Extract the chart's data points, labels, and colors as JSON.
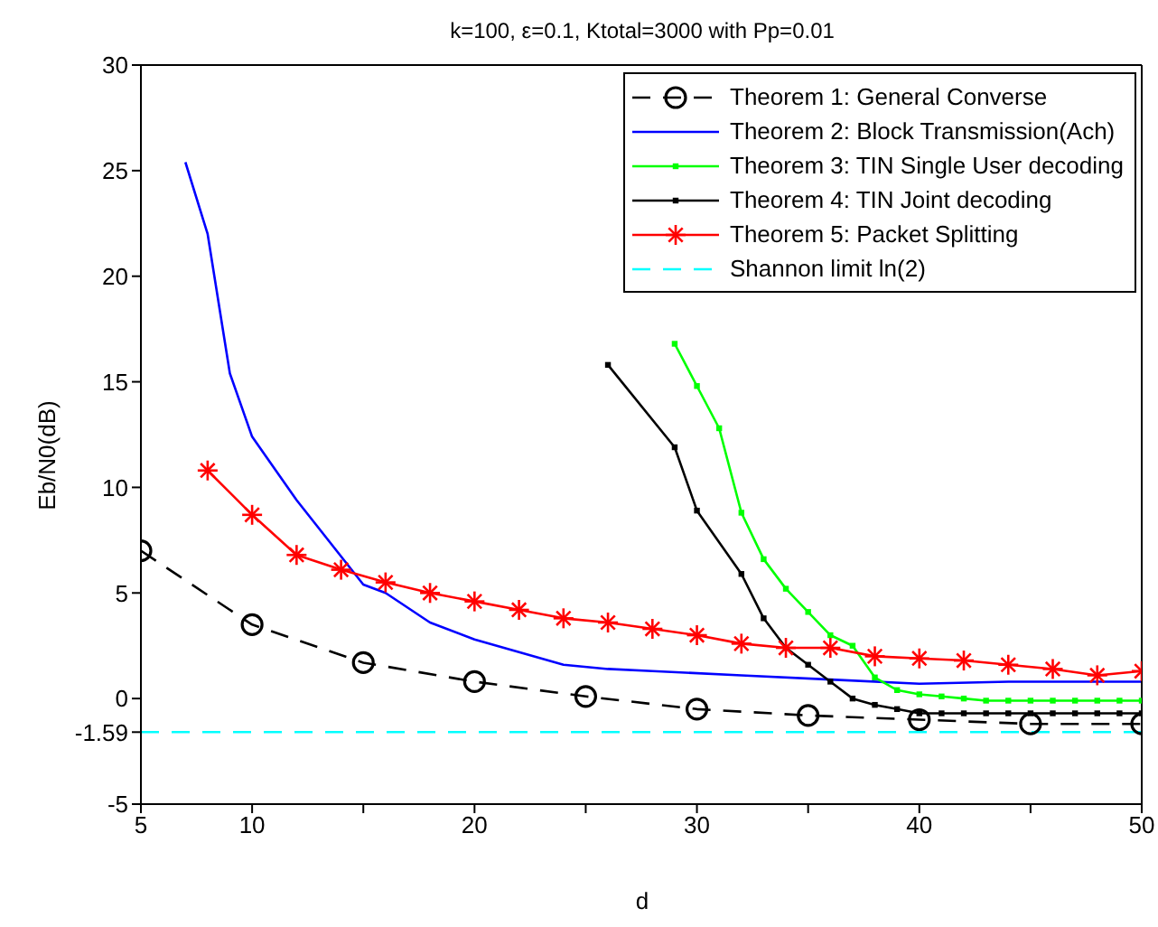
{
  "chart_data": {
    "type": "line",
    "title": "k=100, ε=0.1, Ktotal=3000 with Pp=0.01",
    "xlabel": "d",
    "ylabel": "Eb/N0(dB)",
    "xlim": [
      5,
      50
    ],
    "xticks": [
      5,
      10,
      {
        "value": 15,
        "label": null
      },
      20,
      {
        "value": 25,
        "label": null
      },
      30,
      {
        "value": 35,
        "label": null
      },
      40,
      {
        "value": 45,
        "label": null
      },
      50
    ],
    "ylim": [
      -5,
      30
    ],
    "yticks": [
      -5,
      -1.59,
      0,
      5,
      10,
      15,
      20,
      25,
      30
    ],
    "grid": false,
    "legend": "top right",
    "series": [
      {
        "name": "Theorem 1: General Converse",
        "color": "#000000",
        "line_style": "dashed",
        "marker": "circle",
        "x": [
          5,
          10,
          15,
          20,
          25,
          30,
          35,
          40,
          45,
          50
        ],
        "values": [
          7,
          3.5,
          1.7,
          0.8,
          0.1,
          -0.5,
          -0.8,
          -1.0,
          -1.2,
          -1.2
        ]
      },
      {
        "name": "Theorem 2: Block Transmission(Ach)",
        "color": "#0000ff",
        "line_style": "solid",
        "marker": "none",
        "x": [
          7,
          8,
          9,
          10,
          12,
          15,
          16,
          18,
          20,
          22,
          24,
          26,
          28,
          32,
          36,
          40,
          44,
          50
        ],
        "values": [
          25.4,
          22,
          15.4,
          12.4,
          9.4,
          5.4,
          5.0,
          3.6,
          2.8,
          2.2,
          1.6,
          1.4,
          1.3,
          1.1,
          0.9,
          0.7,
          0.8,
          0.8
        ]
      },
      {
        "name": "Theorem 3: TIN Single User decoding",
        "color": "#00ff00",
        "line_style": "solid",
        "marker": "square",
        "x": [
          29,
          30,
          31,
          32,
          33,
          34,
          35,
          36,
          37,
          38,
          39,
          40,
          41,
          42,
          43,
          44,
          45,
          46,
          47,
          48,
          49,
          50
        ],
        "values": [
          16.8,
          14.8,
          12.8,
          8.8,
          6.6,
          5.2,
          4.1,
          3.0,
          2.5,
          1.0,
          0.4,
          0.2,
          0.1,
          0.0,
          -0.1,
          -0.1,
          -0.1,
          -0.1,
          -0.1,
          -0.1,
          -0.1,
          -0.1
        ]
      },
      {
        "name": "Theorem 4: TIN Joint decoding",
        "color": "#000000",
        "line_style": "solid",
        "marker": "square",
        "x": [
          26,
          29,
          30,
          32,
          33,
          34,
          35,
          36,
          37,
          38,
          39,
          40,
          41,
          42,
          43,
          44,
          45,
          46,
          47,
          48,
          49,
          50
        ],
        "values": [
          15.8,
          11.9,
          8.9,
          5.9,
          3.8,
          2.4,
          1.6,
          0.8,
          0.0,
          -0.3,
          -0.5,
          -0.7,
          -0.7,
          -0.7,
          -0.7,
          -0.7,
          -0.7,
          -0.7,
          -0.7,
          -0.7,
          -0.7,
          -0.7
        ]
      },
      {
        "name": "Theorem 5: Packet Splitting",
        "color": "#ff0000",
        "line_style": "solid",
        "marker": "cross",
        "x": [
          8,
          10,
          12,
          14,
          16,
          18,
          20,
          22,
          24,
          26,
          28,
          30,
          32,
          34,
          36,
          38,
          40,
          42,
          44,
          46,
          48,
          50
        ],
        "values": [
          10.8,
          8.7,
          6.8,
          6.1,
          5.5,
          5.0,
          4.6,
          4.2,
          3.8,
          3.6,
          3.3,
          3.0,
          2.6,
          2.4,
          2.4,
          2.0,
          1.9,
          1.8,
          1.6,
          1.4,
          1.1,
          1.3
        ]
      },
      {
        "name": "Shannon limit ln(2)",
        "color": "#00ffff",
        "line_style": "dashed",
        "marker": "none",
        "x": [
          5,
          50
        ],
        "values": [
          -1.59,
          -1.59
        ]
      }
    ]
  }
}
